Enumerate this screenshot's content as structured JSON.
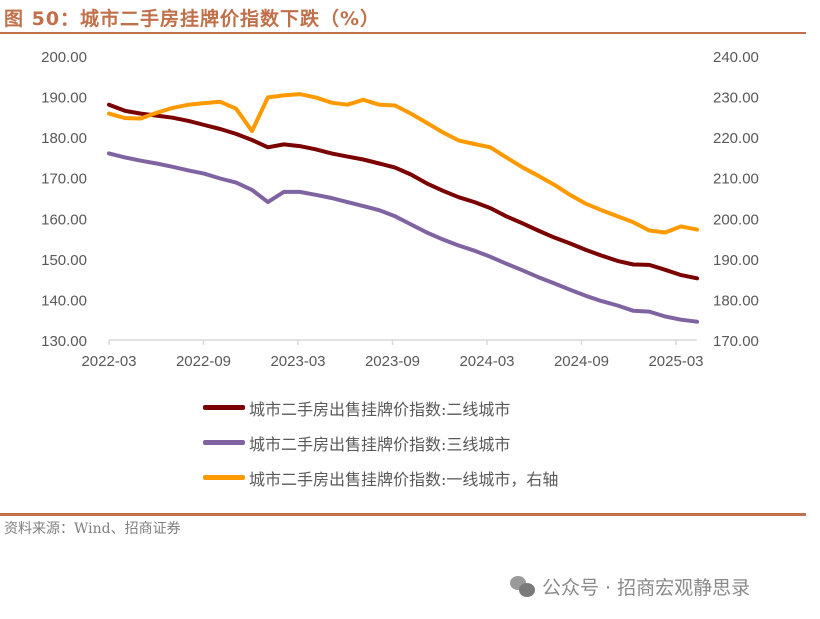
{
  "header": {
    "title": "图 50：城市二手房挂牌价指数下跌（%）"
  },
  "footer": {
    "source": "资料来源：Wind、招商证券",
    "watermark_icon": "wechat-icon",
    "watermark": "公众号 · 招商宏观静思录"
  },
  "colors": {
    "accent": "#c0704a",
    "tier2": "#7b0000",
    "tier3": "#8064a2",
    "tier1": "#ff9900",
    "axis": "#d9d9d9",
    "tick_text": "#595959"
  },
  "chart_data": {
    "type": "line",
    "title": "城市二手房挂牌价指数下跌（%）",
    "xlabel": "",
    "ylabel": "",
    "y_left": {
      "ylim": [
        130,
        200
      ],
      "ticks": [
        "130.00",
        "140.00",
        "150.00",
        "160.00",
        "170.00",
        "180.00",
        "190.00",
        "200.00"
      ]
    },
    "y_right": {
      "ylim": [
        170,
        240
      ],
      "ticks": [
        "170.00",
        "180.00",
        "190.00",
        "200.00",
        "210.00",
        "220.00",
        "230.00",
        "240.00"
      ]
    },
    "x_ticks": [
      "2022-03",
      "2022-09",
      "2023-03",
      "2023-09",
      "2024-03",
      "2024-09",
      "2025-03"
    ],
    "x": [
      "2022-03",
      "2022-04",
      "2022-05",
      "2022-06",
      "2022-07",
      "2022-08",
      "2022-09",
      "2022-10",
      "2022-11",
      "2022-12",
      "2023-01",
      "2023-02",
      "2023-03",
      "2023-04",
      "2023-05",
      "2023-06",
      "2023-07",
      "2023-08",
      "2023-09",
      "2023-10",
      "2023-11",
      "2023-12",
      "2024-01",
      "2024-02",
      "2024-03",
      "2024-04",
      "2024-05",
      "2024-06",
      "2024-07",
      "2024-08",
      "2024-09",
      "2024-10",
      "2024-11",
      "2024-12",
      "2025-01",
      "2025-02",
      "2025-03",
      "2025-04"
    ],
    "grid": false,
    "legend_position": "bottom",
    "series": [
      {
        "name": "城市二手房出售挂牌价指数:二线城市",
        "axis": "left",
        "color": "#7b0000",
        "values": [
          188.0,
          186.5,
          185.8,
          185.3,
          184.8,
          184.0,
          183.0,
          182.0,
          180.8,
          179.3,
          177.5,
          178.2,
          177.8,
          177.0,
          176.0,
          175.2,
          174.5,
          173.5,
          172.5,
          170.8,
          168.6,
          166.8,
          165.2,
          164.0,
          162.5,
          160.5,
          158.8,
          157.0,
          155.3,
          153.8,
          152.2,
          150.8,
          149.5,
          148.6,
          148.5,
          147.3,
          146.0,
          145.2
        ]
      },
      {
        "name": "城市二手房出售挂牌价指数:三线城市",
        "axis": "left",
        "color": "#8064a2",
        "values": [
          176.0,
          175.0,
          174.2,
          173.5,
          172.7,
          171.8,
          171.0,
          169.8,
          168.8,
          167.0,
          164.0,
          166.5,
          166.5,
          165.8,
          165.0,
          164.0,
          163.0,
          162.0,
          160.5,
          158.5,
          156.5,
          154.8,
          153.3,
          152.0,
          150.5,
          148.8,
          147.2,
          145.5,
          144.0,
          142.4,
          140.9,
          139.6,
          138.5,
          137.2,
          137.0,
          135.8,
          135.0,
          134.5
        ]
      },
      {
        "name": "城市二手房出售挂牌价指数:一线城市，右轴",
        "axis": "right",
        "color": "#ff9900",
        "values": [
          225.8,
          224.7,
          224.6,
          226.0,
          227.2,
          228.0,
          228.4,
          228.7,
          227.0,
          221.5,
          229.8,
          230.3,
          230.6,
          229.8,
          228.5,
          228.0,
          229.2,
          228.0,
          227.8,
          225.8,
          223.5,
          221.2,
          219.2,
          218.3,
          217.5,
          215.0,
          212.6,
          210.5,
          208.3,
          205.8,
          203.6,
          202.0,
          200.5,
          199.0,
          197.0,
          196.5,
          198.0,
          197.2
        ]
      }
    ]
  }
}
